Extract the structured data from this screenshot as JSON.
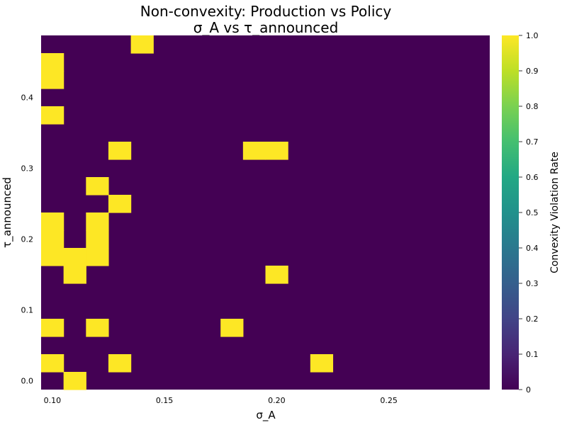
{
  "chart_data": {
    "type": "heatmap",
    "title": "Non-convexity: Production vs Policy",
    "subtitle": "σ_A vs τ_announced",
    "xlabel": "σ_A",
    "ylabel": "τ_announced",
    "colorbar_label": "Convexity Violation Rate",
    "colormap": "viridis",
    "background_color": "#440154",
    "high_color": "#fde725",
    "x_ticks": [
      "0.10",
      "0.15",
      "0.20",
      "0.25"
    ],
    "y_ticks": [
      "0.0",
      "0.1",
      "0.2",
      "0.3",
      "0.4"
    ],
    "colorbar_ticks": [
      "0",
      "0.1",
      "0.2",
      "0.3",
      "0.4",
      "0.5",
      "0.6",
      "0.7",
      "0.8",
      "0.9",
      "1.0"
    ],
    "xlim": [
      0.095,
      0.295
    ],
    "ylim": [
      -0.0125,
      0.4875
    ],
    "clim": [
      0,
      1
    ],
    "cell_width": 0.01,
    "cell_height": 0.025,
    "cells": [
      {
        "x": 0.14,
        "y": 0.475,
        "value": 1
      },
      {
        "x": 0.1,
        "y": 0.45,
        "value": 1
      },
      {
        "x": 0.1,
        "y": 0.425,
        "value": 1
      },
      {
        "x": 0.1,
        "y": 0.375,
        "value": 1
      },
      {
        "x": 0.13,
        "y": 0.325,
        "value": 1
      },
      {
        "x": 0.19,
        "y": 0.325,
        "value": 1
      },
      {
        "x": 0.2,
        "y": 0.325,
        "value": 1
      },
      {
        "x": 0.12,
        "y": 0.275,
        "value": 1
      },
      {
        "x": 0.13,
        "y": 0.25,
        "value": 1
      },
      {
        "x": 0.1,
        "y": 0.225,
        "value": 1
      },
      {
        "x": 0.12,
        "y": 0.225,
        "value": 1
      },
      {
        "x": 0.1,
        "y": 0.2,
        "value": 1
      },
      {
        "x": 0.12,
        "y": 0.2,
        "value": 1
      },
      {
        "x": 0.1,
        "y": 0.175,
        "value": 1
      },
      {
        "x": 0.11,
        "y": 0.175,
        "value": 1
      },
      {
        "x": 0.12,
        "y": 0.175,
        "value": 1
      },
      {
        "x": 0.11,
        "y": 0.15,
        "value": 1
      },
      {
        "x": 0.2,
        "y": 0.15,
        "value": 1
      },
      {
        "x": 0.1,
        "y": 0.075,
        "value": 1
      },
      {
        "x": 0.12,
        "y": 0.075,
        "value": 1
      },
      {
        "x": 0.18,
        "y": 0.075,
        "value": 1
      },
      {
        "x": 0.1,
        "y": 0.025,
        "value": 1
      },
      {
        "x": 0.13,
        "y": 0.025,
        "value": 1
      },
      {
        "x": 0.22,
        "y": 0.025,
        "value": 1
      },
      {
        "x": 0.11,
        "y": 0.0,
        "value": 1
      }
    ]
  }
}
